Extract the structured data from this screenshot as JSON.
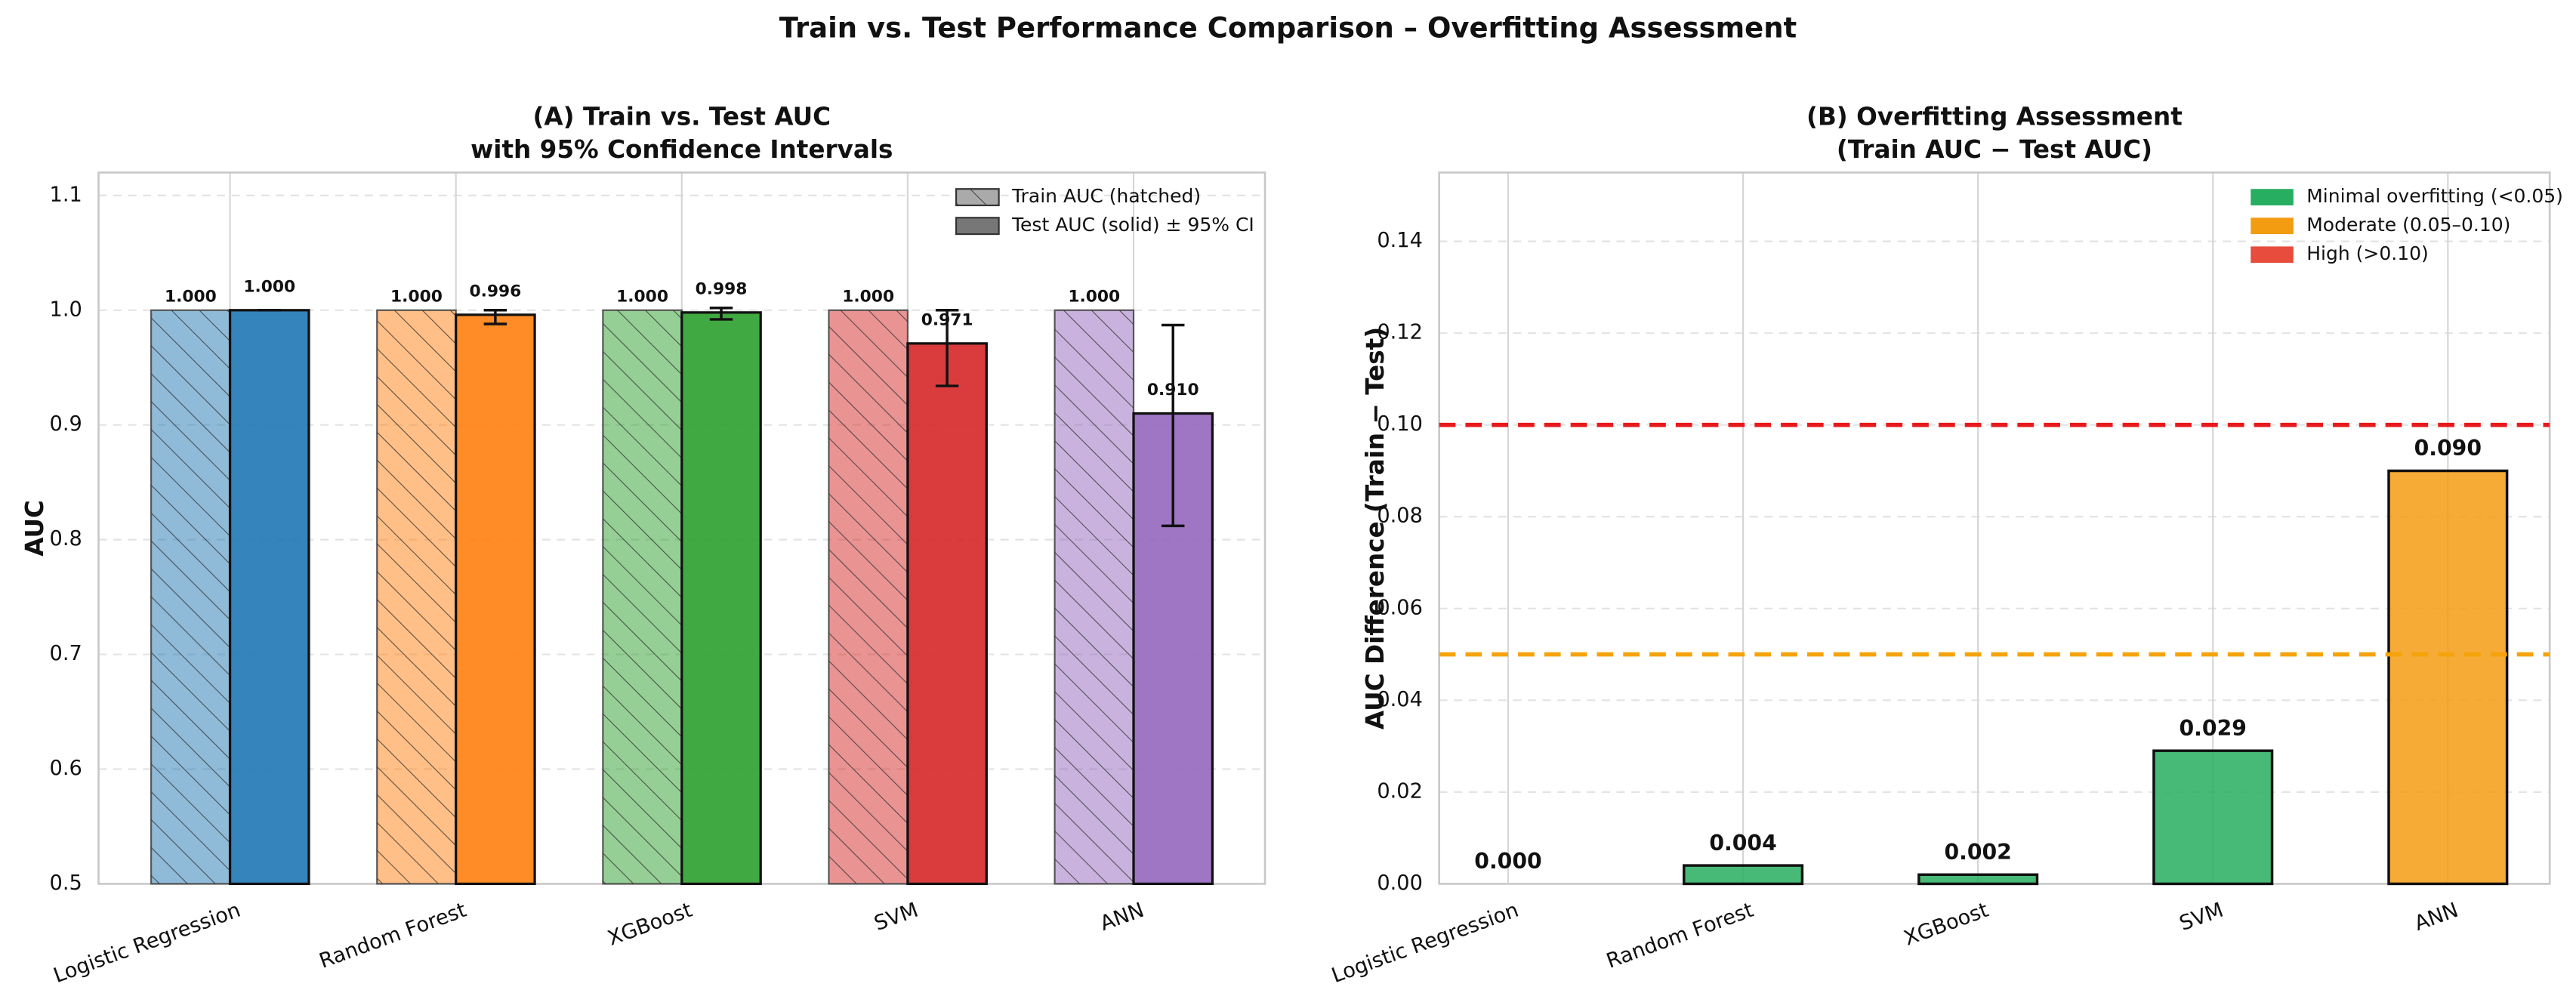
{
  "title": "Train vs. Test Performance Comparison – Overfitting Assessment",
  "chart_data": [
    {
      "type": "bar",
      "title": [
        "(A) Train vs. Test AUC",
        "with 95% Confidence Intervals"
      ],
      "y_label": "AUC",
      "categories": [
        "Logistic Regression",
        "Random Forest",
        "XGBoost",
        "SVM",
        "ANN"
      ],
      "colors": [
        "#1f77b4",
        "#ff7f0e",
        "#2ca02c",
        "#d62728",
        "#9467bd"
      ],
      "series": [
        {
          "name": "Train AUC (hatched)",
          "legend_color": "#aaaaaa",
          "hatch": true,
          "values": [
            1,
            1,
            1,
            1,
            1
          ],
          "value_labels": [
            "1.000",
            "1.000",
            "1.000",
            "1.000",
            "1.000"
          ]
        },
        {
          "name": "Test AUC (solid) ± 95% CI",
          "legend_color": "#777777",
          "hatch": false,
          "values": [
            1,
            0.996,
            0.998,
            0.971,
            0.91
          ],
          "value_labels": [
            "1.000",
            "0.996",
            "0.998",
            "0.971",
            "0.910"
          ],
          "ci_lower": [
            1,
            0.988,
            0.992,
            0.934,
            0.812
          ],
          "ci_upper": [
            1,
            1,
            1.002,
            1,
            0.987
          ]
        }
      ],
      "ylim": [
        0.5,
        1.12
      ],
      "yticks": [
        0.5,
        0.6,
        0.7,
        0.8,
        0.9,
        {
          "value": 1,
          "label": "1.0"
        },
        1.1
      ],
      "grid": true,
      "legend": "upper right"
    },
    {
      "type": "bar",
      "title": [
        "(B) Overfitting Assessment",
        "(Train AUC − Test AUC)"
      ],
      "y_label": "AUC Difference (Train − Test)",
      "categories": [
        "Logistic Regression",
        "Random Forest",
        "XGBoost",
        "SVM",
        "ANN"
      ],
      "values": [
        0,
        0.004,
        0.002,
        0.029,
        0.09
      ],
      "value_labels": [
        "0.000",
        "0.004",
        "0.002",
        "0.029",
        "0.090"
      ],
      "colors": [
        "#27ae60",
        "#27ae60",
        "#27ae60",
        "#27ae60",
        "#f39c12"
      ],
      "hlines": [
        {
          "value": 0.1,
          "color": "#e8191c"
        },
        {
          "value": 0.05,
          "color": "#f5a30a"
        }
      ],
      "legend_entries": [
        {
          "label": "Minimal overfitting (<0.05)",
          "color": "#27ae60"
        },
        {
          "label": "Moderate (0.05–0.10)",
          "color": "#f39c12"
        },
        {
          "label": "High (>0.10)",
          "color": "#e74c3c"
        }
      ],
      "ylim": [
        0,
        0.155
      ],
      "yticks": [
        {
          "value": 0,
          "label": "0.00"
        },
        0.02,
        0.04,
        0.06,
        0.08,
        {
          "value": 0.1,
          "label": "0.10"
        },
        0.12,
        0.14
      ],
      "grid": true,
      "legend": "upper right"
    }
  ]
}
